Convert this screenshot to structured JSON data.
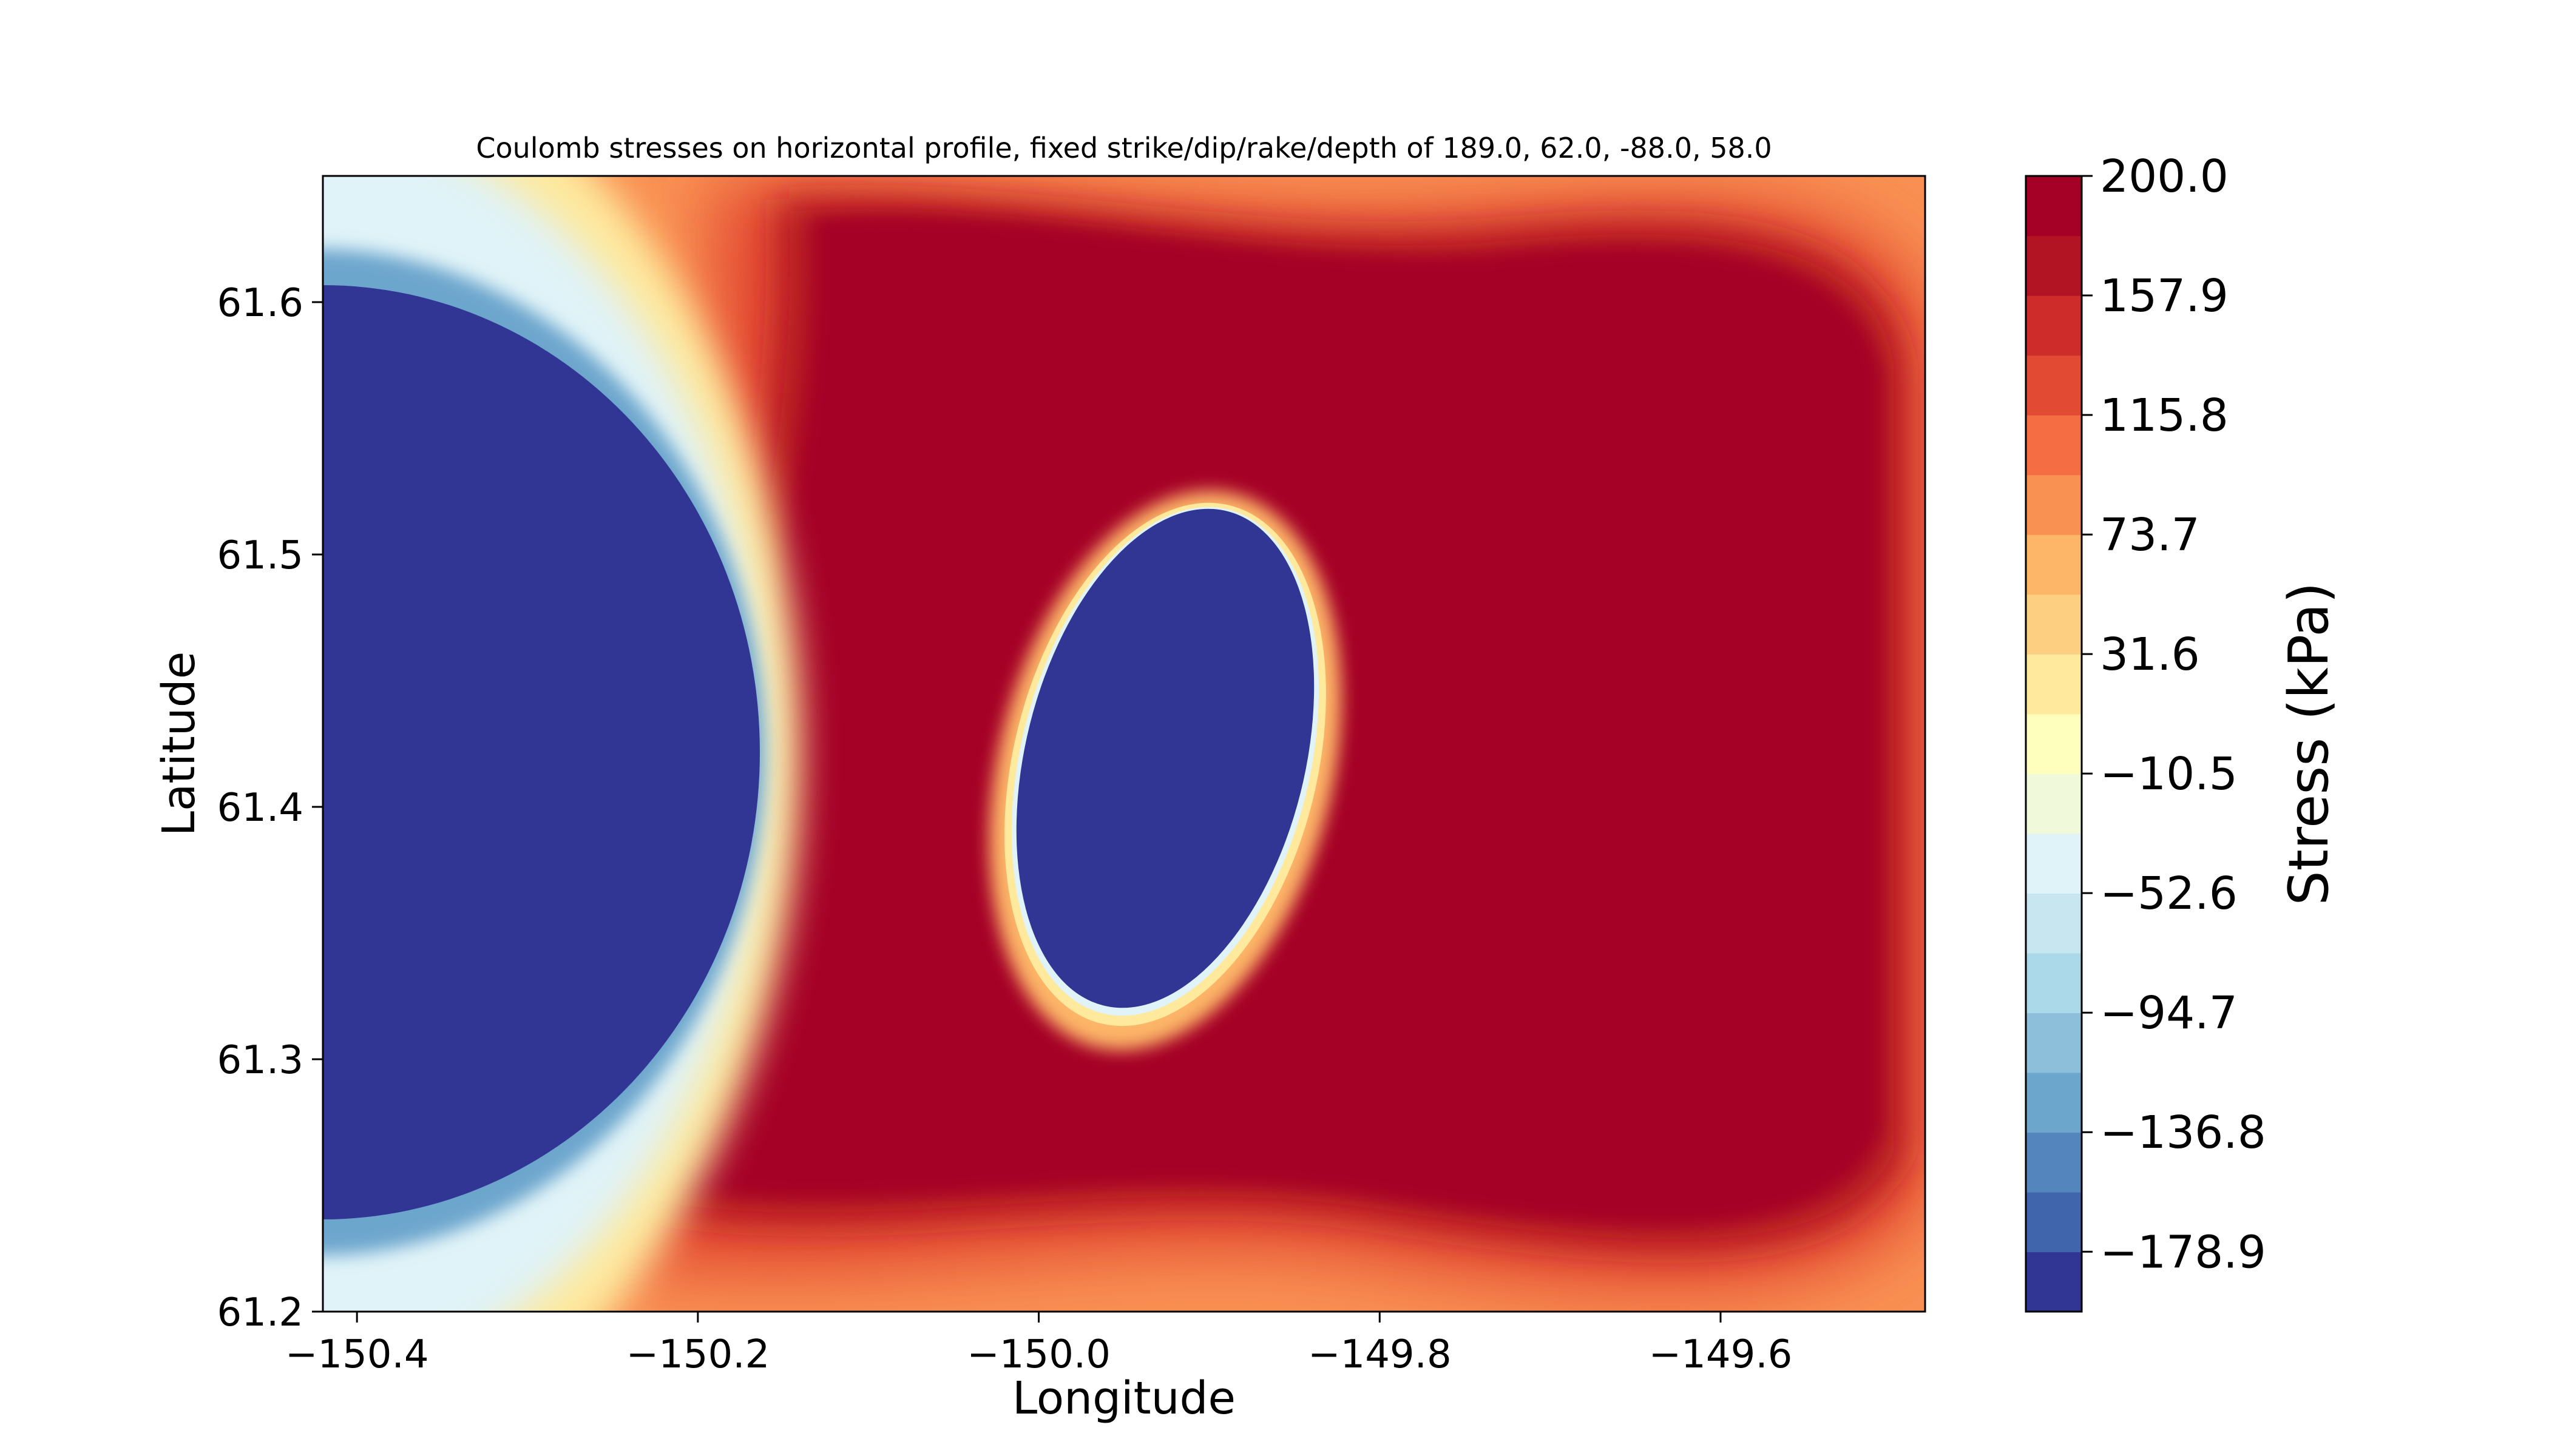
{
  "chart_data": {
    "type": "heatmap",
    "subtype": "filled-contour",
    "title": "Coulomb stresses on horizontal profile, fixed strike/dip/rake/depth of 189.0, 62.0, -88.0, 58.0",
    "xlabel": "Longitude",
    "ylabel": "Latitude",
    "colorbar_label": "Stress (kPa)",
    "xlim": [
      -150.42,
      -149.48
    ],
    "ylim": [
      61.2,
      61.65
    ],
    "x_ticks": [
      -150.4,
      -150.2,
      -150.0,
      -149.8,
      -149.6
    ],
    "x_tick_labels": [
      "−150.4",
      "−150.2",
      "−150.0",
      "−149.8",
      "−149.6"
    ],
    "y_ticks": [
      61.2,
      61.3,
      61.4,
      61.5,
      61.6
    ],
    "y_tick_labels": [
      "61.2",
      "61.3",
      "61.4",
      "61.5",
      "61.6"
    ],
    "colorbar_range": [
      -200.0,
      200.0
    ],
    "colorbar_ticks": [
      200.0,
      157.9,
      115.8,
      73.7,
      31.6,
      -10.5,
      -52.6,
      -94.7,
      -136.8,
      -178.9
    ],
    "colorbar_tick_labels": [
      "200.0",
      "157.9",
      "115.8",
      "73.7",
      "31.6",
      "−10.5",
      "−52.6",
      "−94.7",
      "−136.8",
      "−178.9"
    ],
    "colormap": "RdYlBu_r",
    "n_levels": 19,
    "level_colors": [
      "#313695",
      "#4065ac",
      "#5486bd",
      "#6da6cd",
      "#8ebfda",
      "#abd9e9",
      "#c8e6ef",
      "#e0f3f8",
      "#f0f9da",
      "#fefebd",
      "#fee99d",
      "#fdd081",
      "#fdb567",
      "#f99153",
      "#f46d43",
      "#e34a33",
      "#cd2c2a",
      "#b31424",
      "#a50026"
    ],
    "field_features": [
      {
        "kind": "negative-lobe",
        "min_value": -200.0,
        "center": [
          -150.42,
          61.46
        ],
        "radius_lon": 0.155,
        "radius_lat": 0.16
      },
      {
        "kind": "negative-lobe",
        "min_value": -200.0,
        "center": [
          -149.917,
          61.415
        ],
        "radius_lon": 0.085,
        "radius_lat": 0.095
      },
      {
        "kind": "positive-saturated-region",
        "value": 200.0,
        "center": [
          -149.92,
          61.42
        ]
      }
    ]
  }
}
